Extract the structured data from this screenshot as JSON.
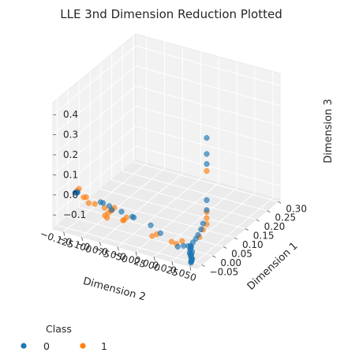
{
  "chart_data": {
    "type": "scatter",
    "projection": "3d",
    "title": "LLE 3nd Dimension Reduction Plotted",
    "xlabel": "Dimension 1",
    "ylabel": "Dimension 2",
    "zlabel": "Dimension 3",
    "xlim": [
      -0.07,
      0.31
    ],
    "ylim": [
      -0.14,
      0.06
    ],
    "zlim": [
      -0.17,
      0.46
    ],
    "xticks": [
      "−0.05",
      "0.00",
      "0.05",
      "0.10",
      "0.15",
      "0.20",
      "0.25",
      "0.30"
    ],
    "xtick_values": [
      -0.05,
      0.0,
      0.05,
      0.1,
      0.15,
      0.2,
      0.25,
      0.3
    ],
    "yticks": [
      "−0.125",
      "−0.100",
      "−0.075",
      "−0.050",
      "−0.025",
      "0.000",
      "0.025",
      "0.050"
    ],
    "ytick_values": [
      -0.125,
      -0.1,
      -0.075,
      -0.05,
      -0.025,
      0.0,
      0.025,
      0.05
    ],
    "zticks": [
      "−0.1",
      "0.0",
      "0.1",
      "0.2",
      "0.3",
      "0.4"
    ],
    "ztick_values": [
      -0.1,
      0.0,
      0.1,
      0.2,
      0.3,
      0.4
    ],
    "grid": true,
    "legend": {
      "title": "Class",
      "placement": "bottom-left"
    },
    "series": [
      {
        "name": "0",
        "color": "#1f77b4",
        "points": [
          [
            0.0,
            0.052,
            0.41
          ],
          [
            0.0,
            0.052,
            0.33
          ],
          [
            0.0,
            0.052,
            0.28
          ],
          [
            0.0,
            0.052,
            0.1
          ],
          [
            0.0,
            0.052,
            0.05
          ],
          [
            -0.01,
            0.05,
            -0.01
          ],
          [
            -0.02,
            0.05,
            -0.03
          ],
          [
            -0.03,
            0.049,
            -0.05
          ],
          [
            -0.04,
            0.049,
            -0.06
          ],
          [
            -0.05,
            0.048,
            -0.07
          ],
          [
            -0.06,
            0.048,
            -0.08
          ],
          [
            -0.055,
            0.047,
            -0.09
          ],
          [
            -0.06,
            0.047,
            -0.1
          ],
          [
            -0.065,
            0.048,
            -0.11
          ],
          [
            -0.06,
            0.049,
            -0.12
          ],
          [
            -0.065,
            0.05,
            -0.13
          ],
          [
            -0.06,
            0.05,
            -0.14
          ],
          [
            -0.065,
            0.05,
            -0.15
          ],
          [
            -0.062,
            0.049,
            -0.16
          ],
          [
            -0.058,
            0.048,
            -0.155
          ],
          [
            -0.066,
            0.051,
            -0.145
          ],
          [
            -0.063,
            0.05,
            -0.135
          ],
          [
            -0.061,
            0.048,
            -0.125
          ],
          [
            -0.064,
            0.049,
            -0.115
          ],
          [
            -0.06,
            0.05,
            -0.105
          ],
          [
            -0.058,
            0.047,
            -0.095
          ],
          [
            -0.05,
            0.045,
            -0.09
          ],
          [
            -0.045,
            0.04,
            -0.1
          ],
          [
            -0.05,
            0.035,
            -0.1
          ],
          [
            -0.06,
            0.03,
            -0.1
          ],
          [
            -0.04,
            0.0,
            -0.08
          ],
          [
            -0.035,
            -0.015,
            -0.06
          ],
          [
            -0.03,
            -0.04,
            -0.05
          ],
          [
            -0.02,
            -0.045,
            -0.06
          ],
          [
            -0.02,
            -0.06,
            -0.05
          ],
          [
            -0.015,
            -0.075,
            -0.06
          ],
          [
            -0.01,
            -0.08,
            -0.05
          ],
          [
            -0.005,
            -0.09,
            -0.05
          ],
          [
            0.0,
            -0.095,
            -0.055
          ],
          [
            0.01,
            -0.13,
            -0.05
          ],
          [
            0.011,
            -0.131,
            -0.052
          ],
          [
            0.012,
            -0.132,
            -0.054
          ],
          [
            0.013,
            -0.133,
            -0.056
          ],
          [
            0.014,
            -0.134,
            -0.058
          ],
          [
            0.015,
            -0.134,
            -0.06
          ],
          [
            0.016,
            -0.135,
            -0.062
          ]
        ]
      },
      {
        "name": "1",
        "color": "#ff7f0e",
        "points": [
          [
            0.0,
            0.052,
            0.245
          ],
          [
            0.0,
            0.052,
            0.04
          ],
          [
            0.0,
            0.052,
            0.01
          ],
          [
            0.0,
            0.052,
            -0.02
          ],
          [
            -0.01,
            0.05,
            -0.04
          ],
          [
            -0.02,
            0.048,
            -0.07
          ],
          [
            -0.04,
            0.03,
            -0.09
          ],
          [
            -0.05,
            0.025,
            -0.1
          ],
          [
            -0.055,
            0.02,
            -0.09
          ],
          [
            -0.04,
            -0.005,
            -0.09
          ],
          [
            -0.045,
            -0.01,
            -0.1
          ],
          [
            -0.03,
            -0.05,
            -0.06
          ],
          [
            -0.035,
            -0.052,
            -0.07
          ],
          [
            -0.03,
            -0.055,
            -0.08
          ],
          [
            -0.02,
            -0.07,
            -0.04
          ],
          [
            -0.025,
            -0.072,
            -0.05
          ],
          [
            -0.02,
            -0.075,
            -0.06
          ],
          [
            -0.025,
            -0.077,
            -0.07
          ],
          [
            -0.03,
            -0.08,
            -0.08
          ],
          [
            -0.02,
            -0.08,
            -0.1
          ],
          [
            -0.015,
            -0.085,
            -0.06
          ],
          [
            -0.01,
            -0.1,
            -0.06
          ],
          [
            -0.005,
            -0.11,
            -0.07
          ],
          [
            0.0,
            -0.115,
            -0.05
          ],
          [
            0.005,
            -0.12,
            -0.06
          ],
          [
            0.01,
            -0.128,
            -0.03
          ],
          [
            0.008,
            -0.13,
            -0.04
          ]
        ]
      }
    ]
  }
}
